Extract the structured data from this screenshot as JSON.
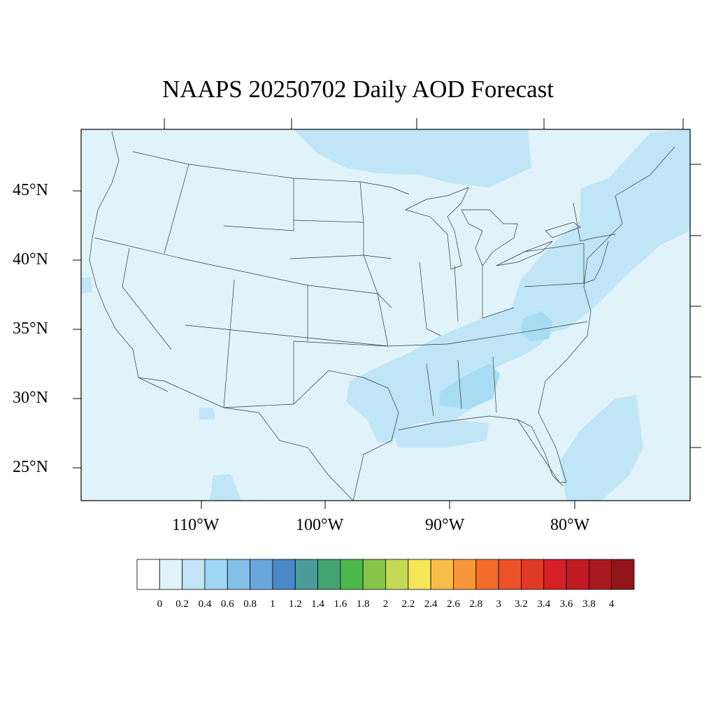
{
  "title": "NAAPS 20250702 Daily AOD Forecast",
  "map": {
    "lon_range": [
      -119,
      -70
    ],
    "lat_range": [
      22.6,
      49.4
    ],
    "lat_ticks": [
      {
        "value": 45,
        "label": "45°N"
      },
      {
        "value": 40,
        "label": "40°N"
      },
      {
        "value": 35,
        "label": "35°N"
      },
      {
        "value": 30,
        "label": "30°N"
      },
      {
        "value": 25,
        "label": "25°N"
      }
    ],
    "lon_ticks": [
      {
        "value": -110,
        "label": "110°W"
      },
      {
        "value": -100,
        "label": "100°W"
      },
      {
        "value": -90,
        "label": "90°W"
      },
      {
        "value": -80,
        "label": "80°W"
      }
    ],
    "background_color": "#e0f3fb",
    "elevated_color": "#bfe5f7",
    "high_color": "#a8dcf3"
  },
  "colorbar": {
    "levels": [
      "0",
      "0.2",
      "0.4",
      "0.6",
      "0.8",
      "1",
      "1.2",
      "1.4",
      "1.6",
      "1.8",
      "2",
      "2.2",
      "2.4",
      "2.6",
      "2.8",
      "3",
      "3.2",
      "3.4",
      "3.6",
      "3.8",
      "4"
    ],
    "colors": [
      "#ffffff",
      "#e0f3fb",
      "#bfe5f7",
      "#9fd8f4",
      "#83bfe6",
      "#69a7db",
      "#4a88c8",
      "#4a9b9a",
      "#45a473",
      "#4cb84a",
      "#86c54a",
      "#c4d955",
      "#f7e55a",
      "#f8bd46",
      "#f69739",
      "#f36c2a",
      "#ec5229",
      "#e03b28",
      "#d62027",
      "#c01b24",
      "#a8191f",
      "#921519"
    ]
  }
}
